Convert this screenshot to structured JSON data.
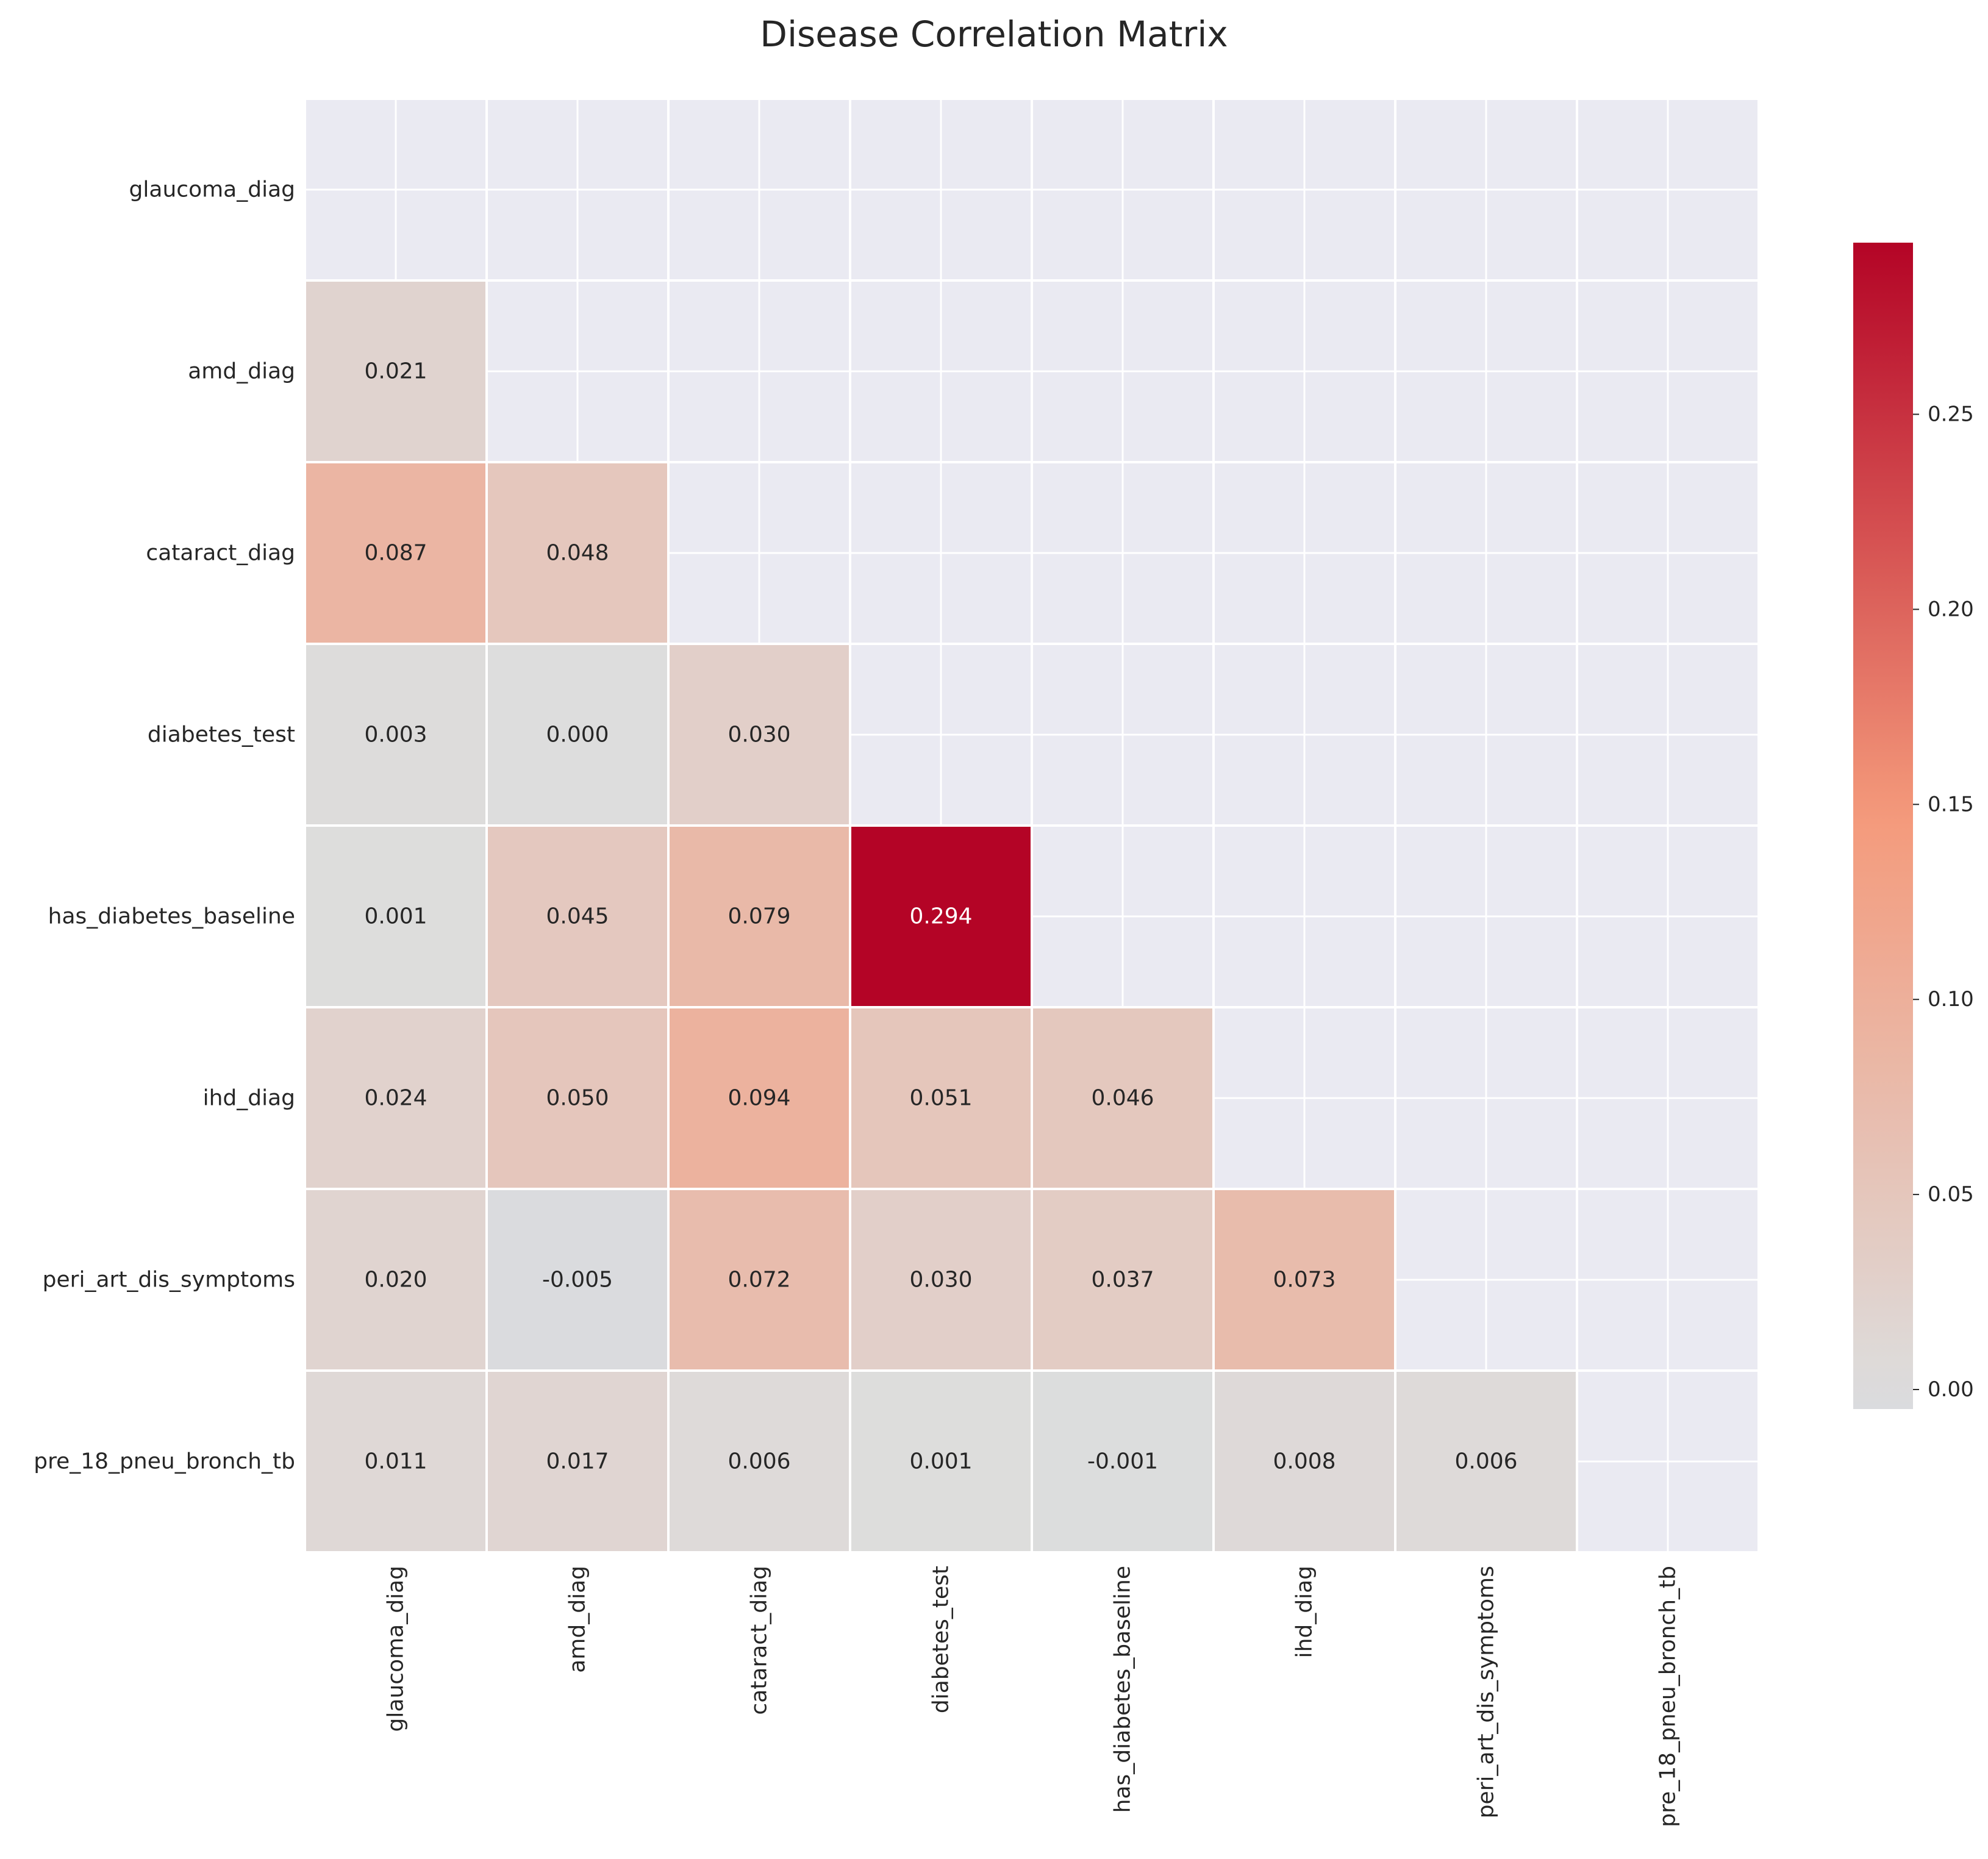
{
  "chart_data": {
    "type": "heatmap",
    "title": "Disease Correlation Matrix",
    "variables": [
      "glaucoma_diag",
      "amd_diag",
      "cataract_diag",
      "diabetes_test",
      "has_diabetes_baseline",
      "ihd_diag",
      "peri_art_dis_symptoms",
      "pre_18_pneu_bronch_tb"
    ],
    "mask": "upper-triangle-including-diagonal",
    "values": [
      [
        null,
        null,
        null,
        null,
        null,
        null,
        null,
        null
      ],
      [
        0.021,
        null,
        null,
        null,
        null,
        null,
        null,
        null
      ],
      [
        0.087,
        0.048,
        null,
        null,
        null,
        null,
        null,
        null
      ],
      [
        0.003,
        0.0,
        0.03,
        null,
        null,
        null,
        null,
        null
      ],
      [
        0.001,
        0.045,
        0.079,
        0.294,
        null,
        null,
        null,
        null
      ],
      [
        0.024,
        0.05,
        0.094,
        0.051,
        0.046,
        null,
        null,
        null
      ],
      [
        0.02,
        -0.005,
        0.072,
        0.03,
        0.037,
        0.073,
        null,
        null
      ],
      [
        0.011,
        0.017,
        0.006,
        0.001,
        -0.001,
        0.008,
        0.006,
        null
      ]
    ],
    "value_labels": [
      [
        null,
        null,
        null,
        null,
        null,
        null,
        null,
        null
      ],
      [
        "0.021",
        null,
        null,
        null,
        null,
        null,
        null,
        null
      ],
      [
        "0.087",
        "0.048",
        null,
        null,
        null,
        null,
        null,
        null
      ],
      [
        "0.003",
        "0.000",
        "0.030",
        null,
        null,
        null,
        null,
        null
      ],
      [
        "0.001",
        "0.045",
        "0.079",
        "0.294",
        null,
        null,
        null,
        null
      ],
      [
        "0.024",
        "0.050",
        "0.094",
        "0.051",
        "0.046",
        null,
        null,
        null
      ],
      [
        "0.020",
        "-0.005",
        "0.072",
        "0.030",
        "0.037",
        "0.073",
        null,
        null
      ],
      [
        "0.011",
        "0.017",
        "0.006",
        "0.001",
        "-0.001",
        "0.008",
        "0.006",
        null
      ]
    ],
    "colormap": "coolwarm",
    "center": 0,
    "vmin": -0.005,
    "vmax": 0.294,
    "colorbar": {
      "ticks": [
        0.0,
        0.05,
        0.1,
        0.15,
        0.2,
        0.25
      ],
      "tick_labels": [
        "0.00",
        "0.05",
        "0.10",
        "0.15",
        "0.20",
        "0.25"
      ],
      "position": "right"
    },
    "grid": true,
    "colors": {
      "masked_background": "#EAEAF2",
      "grid_line": "#FFFFFF",
      "cell_border": "#FFFFFF",
      "text_dark": "#262626",
      "text_light": "#FFFFFF"
    }
  }
}
